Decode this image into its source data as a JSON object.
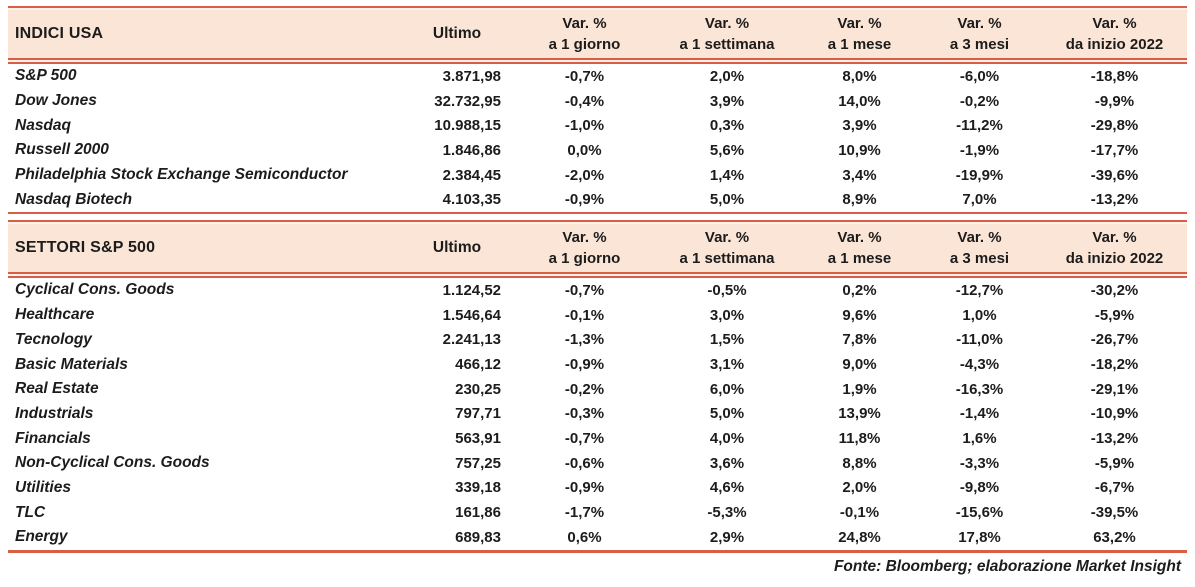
{
  "colors": {
    "accent": "#d85f45",
    "header_band": "#fbe5d6",
    "text": "#1c1c1c"
  },
  "columns": {
    "ultimo": "Ultimo",
    "var_label": "Var. %",
    "periods": [
      "a 1 giorno",
      "a 1 settimana",
      "a 1 mese",
      "a 3 mesi",
      "da inizio 2022"
    ]
  },
  "sections": [
    {
      "title": "INDICI USA",
      "rows": [
        {
          "name": "S&P 500",
          "ultimo": "3.871,98",
          "vars": [
            "-0,7%",
            "2,0%",
            "8,0%",
            "-6,0%",
            "-18,8%"
          ]
        },
        {
          "name": "Dow Jones",
          "ultimo": "32.732,95",
          "vars": [
            "-0,4%",
            "3,9%",
            "14,0%",
            "-0,2%",
            "-9,9%"
          ]
        },
        {
          "name": "Nasdaq",
          "ultimo": "10.988,15",
          "vars": [
            "-1,0%",
            "0,3%",
            "3,9%",
            "-11,2%",
            "-29,8%"
          ]
        },
        {
          "name": "Russell 2000",
          "ultimo": "1.846,86",
          "vars": [
            "0,0%",
            "5,6%",
            "10,9%",
            "-1,9%",
            "-17,7%"
          ]
        },
        {
          "name": "Philadelphia Stock Exchange Semiconductor",
          "ultimo": "2.384,45",
          "vars": [
            "-2,0%",
            "1,4%",
            "3,4%",
            "-19,9%",
            "-39,6%"
          ]
        },
        {
          "name": "Nasdaq Biotech",
          "ultimo": "4.103,35",
          "vars": [
            "-0,9%",
            "5,0%",
            "8,9%",
            "7,0%",
            "-13,2%"
          ]
        }
      ]
    },
    {
      "title": "SETTORI S&P 500",
      "rows": [
        {
          "name": "Cyclical Cons. Goods",
          "ultimo": "1.124,52",
          "vars": [
            "-0,7%",
            "-0,5%",
            "0,2%",
            "-12,7%",
            "-30,2%"
          ]
        },
        {
          "name": "Healthcare",
          "ultimo": "1.546,64",
          "vars": [
            "-0,1%",
            "3,0%",
            "9,6%",
            "1,0%",
            "-5,9%"
          ]
        },
        {
          "name": "Tecnology",
          "ultimo": "2.241,13",
          "vars": [
            "-1,3%",
            "1,5%",
            "7,8%",
            "-11,0%",
            "-26,7%"
          ]
        },
        {
          "name": "Basic Materials",
          "ultimo": "466,12",
          "vars": [
            "-0,9%",
            "3,1%",
            "9,0%",
            "-4,3%",
            "-18,2%"
          ]
        },
        {
          "name": "Real Estate",
          "ultimo": "230,25",
          "vars": [
            "-0,2%",
            "6,0%",
            "1,9%",
            "-16,3%",
            "-29,1%"
          ]
        },
        {
          "name": "Industrials",
          "ultimo": "797,71",
          "vars": [
            "-0,3%",
            "5,0%",
            "13,9%",
            "-1,4%",
            "-10,9%"
          ]
        },
        {
          "name": "Financials",
          "ultimo": "563,91",
          "vars": [
            "-0,7%",
            "4,0%",
            "11,8%",
            "1,6%",
            "-13,2%"
          ]
        },
        {
          "name": "Non-Cyclical Cons. Goods",
          "ultimo": "757,25",
          "vars": [
            "-0,6%",
            "3,6%",
            "8,8%",
            "-3,3%",
            "-5,9%"
          ]
        },
        {
          "name": "Utilities",
          "ultimo": "339,18",
          "vars": [
            "-0,9%",
            "4,6%",
            "2,0%",
            "-9,8%",
            "-6,7%"
          ]
        },
        {
          "name": "TLC",
          "ultimo": "161,86",
          "vars": [
            "-1,7%",
            "-5,3%",
            "-0,1%",
            "-15,6%",
            "-39,5%"
          ]
        },
        {
          "name": "Energy",
          "ultimo": "689,83",
          "vars": [
            "0,6%",
            "2,9%",
            "24,8%",
            "17,8%",
            "63,2%"
          ]
        }
      ]
    }
  ],
  "footer": "Fonte: Bloomberg; elaborazione Market Insight"
}
